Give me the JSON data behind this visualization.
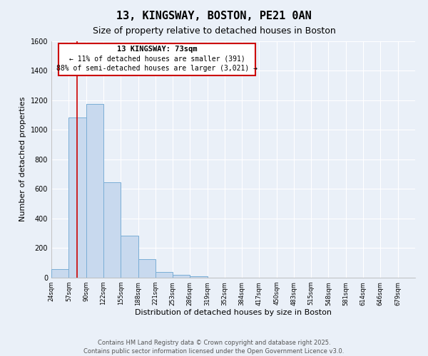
{
  "title": "13, KINGSWAY, BOSTON, PE21 0AN",
  "subtitle": "Size of property relative to detached houses in Boston",
  "xlabel": "Distribution of detached houses by size in Boston",
  "ylabel": "Number of detached properties",
  "bar_color": "#c8d9ee",
  "bar_edge_color": "#7aaed6",
  "annotation_box_color": "#cc0000",
  "annotation_fill": "#ffffff",
  "vline_color": "#cc0000",
  "vline_x": 73,
  "annotation_title": "13 KINGSWAY: 73sqm",
  "annotation_line1": "← 11% of detached houses are smaller (391)",
  "annotation_line2": "88% of semi-detached houses are larger (3,021) →",
  "bins": [
    24,
    57,
    90,
    122,
    155,
    188,
    221,
    253,
    286,
    319,
    352,
    384,
    417,
    450,
    483,
    515,
    548,
    581,
    614,
    646,
    679
  ],
  "counts": [
    60,
    1085,
    1175,
    645,
    285,
    125,
    40,
    20,
    10,
    0,
    0,
    0,
    0,
    0,
    0,
    0,
    0,
    0,
    0,
    0
  ],
  "tick_labels": [
    "24sqm",
    "57sqm",
    "90sqm",
    "122sqm",
    "155sqm",
    "188sqm",
    "221sqm",
    "253sqm",
    "286sqm",
    "319sqm",
    "352sqm",
    "384sqm",
    "417sqm",
    "450sqm",
    "483sqm",
    "515sqm",
    "548sqm",
    "581sqm",
    "614sqm",
    "646sqm",
    "679sqm"
  ],
  "ylim": [
    0,
    1600
  ],
  "yticks": [
    0,
    200,
    400,
    600,
    800,
    1000,
    1200,
    1400,
    1600
  ],
  "background_color": "#eaf0f8",
  "grid_color": "#ffffff",
  "footer_line1": "Contains HM Land Registry data © Crown copyright and database right 2025.",
  "footer_line2": "Contains public sector information licensed under the Open Government Licence v3.0.",
  "title_fontsize": 11,
  "subtitle_fontsize": 9,
  "xlabel_fontsize": 8,
  "ylabel_fontsize": 8,
  "tick_fontsize": 6,
  "footer_fontsize": 6
}
